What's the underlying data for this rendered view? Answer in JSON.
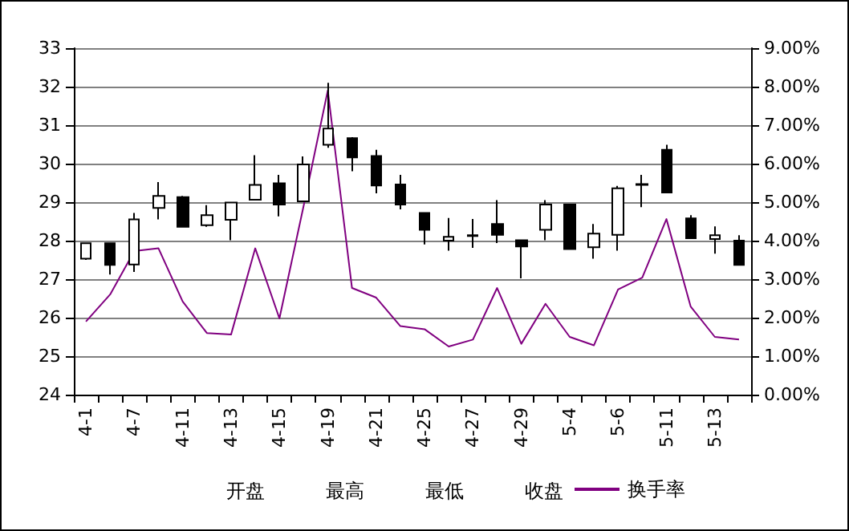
{
  "chart_data": {
    "type": "candlestick",
    "categories": [
      "4-1",
      null,
      "4-7",
      null,
      "4-11",
      null,
      "4-13",
      null,
      "4-15",
      null,
      "4-19",
      null,
      "4-21",
      null,
      "4-25",
      null,
      "4-27",
      null,
      "4-29",
      null,
      "5-4",
      null,
      "5-6",
      null,
      "5-11",
      null,
      "5-13",
      null
    ],
    "color": "#000000",
    "ohlc": [
      [
        27.53,
        27.95,
        27.5,
        27.93
      ],
      [
        27.93,
        27.93,
        27.12,
        27.37
      ],
      [
        27.38,
        28.72,
        27.19,
        28.55
      ],
      [
        28.85,
        29.52,
        28.55,
        29.16
      ],
      [
        29.13,
        29.16,
        28.36,
        28.36
      ],
      [
        28.4,
        28.92,
        28.36,
        28.66
      ],
      [
        28.54,
        28.99,
        28.01,
        28.99
      ],
      [
        29.06,
        30.22,
        29.06,
        29.45
      ],
      [
        29.49,
        29.71,
        28.63,
        28.94
      ],
      [
        29.02,
        30.19,
        29.02,
        29.98
      ],
      [
        30.49,
        32.1,
        30.41,
        30.91
      ],
      [
        30.66,
        30.69,
        29.8,
        30.16
      ],
      [
        30.2,
        30.36,
        29.23,
        29.43
      ],
      [
        29.46,
        29.71,
        28.81,
        28.94
      ],
      [
        28.72,
        28.72,
        27.9,
        28.28
      ],
      [
        28.0,
        28.59,
        27.74,
        28.1
      ],
      [
        28.12,
        28.56,
        27.81,
        28.14
      ],
      [
        28.43,
        29.05,
        27.94,
        28.15
      ],
      [
        28.01,
        28.01,
        27.02,
        27.85
      ],
      [
        28.28,
        29.05,
        28.01,
        28.94
      ],
      [
        28.94,
        28.94,
        27.78,
        27.78
      ],
      [
        27.83,
        28.43,
        27.53,
        28.18
      ],
      [
        28.15,
        29.42,
        27.74,
        29.36
      ],
      [
        29.45,
        29.71,
        28.87,
        29.47
      ],
      [
        30.36,
        30.49,
        29.25,
        29.25
      ],
      [
        28.58,
        28.66,
        28.06,
        28.06
      ],
      [
        28.04,
        28.37,
        27.66,
        28.14
      ],
      [
        28.0,
        28.14,
        27.37,
        27.37
      ]
    ],
    "series": [
      {
        "type": "line",
        "name": "换手率",
        "color": "#800080",
        "axis": "y2",
        "values": [
          1.9,
          2.6,
          3.73,
          3.8,
          2.42,
          1.6,
          1.56,
          3.8,
          1.98,
          4.9,
          7.9,
          2.77,
          2.52,
          1.78,
          1.7,
          1.25,
          1.43,
          2.77,
          1.32,
          2.36,
          1.5,
          1.28,
          2.73,
          3.04,
          4.56,
          2.29,
          1.5,
          1.43
        ]
      }
    ],
    "ylim": [
      24,
      33
    ],
    "yticks": [
      24,
      25,
      26,
      27,
      28,
      29,
      30,
      31,
      32,
      33
    ],
    "y2lim": [
      0,
      9
    ],
    "y2ticks": [
      {
        "value": 0,
        "label": "0.00%"
      },
      {
        "value": 1,
        "label": "1.00%"
      },
      {
        "value": 2,
        "label": "2.00%"
      },
      {
        "value": 3,
        "label": "3.00%"
      },
      {
        "value": 4,
        "label": "4.00%"
      },
      {
        "value": 5,
        "label": "5.00%"
      },
      {
        "value": 6,
        "label": "6.00%"
      },
      {
        "value": 7,
        "label": "7.00%"
      },
      {
        "value": 8,
        "label": "8.00%"
      },
      {
        "value": 9,
        "label": "9.00%"
      }
    ],
    "annotations": [
      "开盘",
      "最高",
      "最低",
      "收盘"
    ],
    "grid": "y",
    "legend": "bottom",
    "marker": "none",
    "line_style": "solid"
  }
}
